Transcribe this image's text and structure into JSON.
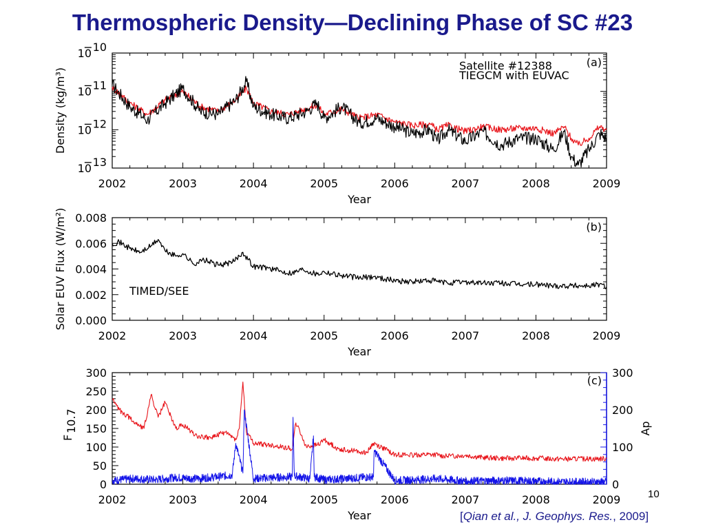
{
  "title": "Thermospheric Density—Declining Phase of SC #23",
  "page_number": "10",
  "citation": {
    "open": "[",
    "authors": "Qian et al., J. Geophys. Res.",
    "rest": ", 2009]"
  },
  "colors": {
    "title": "#1a1a8c",
    "observed": "#000000",
    "model": "#e8141a",
    "f107": "#e8141a",
    "ap": "#1414e8"
  },
  "chart_data": [
    {
      "type": "line",
      "panel": "(a)",
      "xlabel": "Year",
      "ylabel": "Density (kg/m³)",
      "yscale": "log",
      "xlim": [
        2002,
        2009
      ],
      "ylim": [
        1e-13,
        1e-10
      ],
      "xticks": [
        "2002",
        "2003",
        "2004",
        "2005",
        "2006",
        "2007",
        "2008",
        "2009"
      ],
      "yticks": [
        {
          "value": 1e-13,
          "base": "10",
          "exp": "−13"
        },
        {
          "value": 1e-12,
          "base": "10",
          "exp": "−12"
        },
        {
          "value": 1e-11,
          "base": "10",
          "exp": "−11"
        },
        {
          "value": 1e-10,
          "base": "10",
          "exp": "−10"
        }
      ],
      "legend": [
        "Satellite #12388",
        "TIEGCM with EUVAC"
      ],
      "legend_position": "top-right",
      "series": [
        {
          "name": "Satellite #12388",
          "x": [
            2002.0,
            2002.25,
            2002.5,
            2002.75,
            2003.0,
            2003.25,
            2003.5,
            2003.75,
            2003.9,
            2004.0,
            2004.25,
            2004.5,
            2004.75,
            2004.9,
            2005.0,
            2005.25,
            2005.5,
            2005.75,
            2006.0,
            2006.25,
            2006.5,
            2006.6,
            2006.75,
            2007.0,
            2007.25,
            2007.5,
            2007.75,
            2008.0,
            2008.25,
            2008.4,
            2008.5,
            2008.6,
            2008.75,
            2008.9,
            2009.0
          ],
          "y": [
            1.5e-11,
            4e-12,
            1.8e-12,
            5e-12,
            1.2e-11,
            3e-12,
            2.5e-12,
            6e-12,
            1.8e-11,
            4e-12,
            2.5e-12,
            2e-12,
            3e-12,
            5e-12,
            2e-12,
            4e-12,
            1.5e-12,
            2e-12,
            1.2e-12,
            8e-13,
            1e-12,
            5e-13,
            1e-12,
            5e-13,
            9e-13,
            4e-13,
            6e-13,
            6e-13,
            3e-13,
            9e-13,
            2e-13,
            1.2e-13,
            3e-13,
            8e-13,
            6e-13
          ]
        },
        {
          "name": "TIEGCM with EUVAC",
          "x": [
            2002.0,
            2002.25,
            2002.5,
            2002.75,
            2003.0,
            2003.25,
            2003.5,
            2003.75,
            2003.9,
            2004.0,
            2004.25,
            2004.5,
            2004.75,
            2004.9,
            2005.0,
            2005.25,
            2005.5,
            2005.75,
            2006.0,
            2006.25,
            2006.5,
            2006.6,
            2006.75,
            2007.0,
            2007.25,
            2007.5,
            2007.75,
            2008.0,
            2008.25,
            2008.4,
            2008.5,
            2008.6,
            2008.75,
            2008.9,
            2009.0
          ],
          "y": [
            1.3e-11,
            5e-12,
            2.5e-12,
            6e-12,
            1e-11,
            4e-12,
            3e-12,
            6e-12,
            1.2e-11,
            5e-12,
            3e-12,
            2.5e-12,
            3.5e-12,
            4.5e-12,
            2.5e-12,
            3.5e-12,
            2e-12,
            2.5e-12,
            1.6e-12,
            1.3e-12,
            1.4e-12,
            1e-12,
            1.3e-12,
            9e-13,
            1.2e-12,
            1e-12,
            1.1e-12,
            1.1e-12,
            8e-13,
            1.2e-12,
            6e-13,
            4e-13,
            6e-13,
            1.2e-12,
            1e-12
          ]
        }
      ]
    },
    {
      "type": "line",
      "panel": "(b)",
      "xlabel": "Year",
      "ylabel": "Solar EUV Flux (W/m²)",
      "xlim": [
        2002,
        2009
      ],
      "ylim": [
        0,
        0.008
      ],
      "xticks": [
        "2002",
        "2003",
        "2004",
        "2005",
        "2006",
        "2007",
        "2008",
        "2009"
      ],
      "yticks": [
        "0.000",
        "0.002",
        "0.004",
        "0.006",
        "0.008"
      ],
      "annotation": "TIMED/SEE",
      "series": [
        {
          "name": "TIMED/SEE",
          "x": [
            2002.0,
            2002.1,
            2002.25,
            2002.4,
            2002.55,
            2002.65,
            2002.75,
            2002.9,
            2003.0,
            2003.15,
            2003.3,
            2003.5,
            2003.7,
            2003.85,
            2004.0,
            2004.2,
            2004.4,
            2004.55,
            2004.7,
            2004.9,
            2005.0,
            2005.25,
            2005.5,
            2005.7,
            2006.0,
            2006.25,
            2006.5,
            2006.75,
            2007.0,
            2007.25,
            2007.5,
            2007.75,
            2008.0,
            2008.25,
            2008.5,
            2008.75,
            2008.9,
            2009.0
          ],
          "y": [
            0.006,
            0.0061,
            0.0056,
            0.0053,
            0.0058,
            0.0063,
            0.0054,
            0.005,
            0.0052,
            0.0044,
            0.0047,
            0.0043,
            0.0045,
            0.0053,
            0.0042,
            0.0041,
            0.0038,
            0.0037,
            0.004,
            0.0036,
            0.0038,
            0.0035,
            0.0033,
            0.0034,
            0.0031,
            0.003,
            0.0031,
            0.0029,
            0.003,
            0.0029,
            0.0029,
            0.0028,
            0.0028,
            0.0027,
            0.0027,
            0.0027,
            0.0028,
            0.0026
          ]
        }
      ]
    },
    {
      "type": "line",
      "panel": "(c)",
      "xlabel": "Year",
      "ylabel": "F10.7",
      "ylabel_main": "F",
      "ylabel_sub": "10.7",
      "y2label": "Ap",
      "xlim": [
        2002,
        2009
      ],
      "ylim": [
        0,
        300
      ],
      "y2lim": [
        0,
        300
      ],
      "xticks": [
        "2002",
        "2003",
        "2004",
        "2005",
        "2006",
        "2007",
        "2008",
        "2009"
      ],
      "yticks": [
        "0",
        "50",
        "100",
        "150",
        "200",
        "250",
        "300"
      ],
      "y2ticks": [
        "0",
        "100",
        "200",
        "300"
      ],
      "series": [
        {
          "name": "F10.7",
          "x": [
            2002.0,
            2002.1,
            2002.2,
            2002.3,
            2002.45,
            2002.55,
            2002.65,
            2002.75,
            2002.9,
            2003.0,
            2003.2,
            2003.4,
            2003.6,
            2003.75,
            2003.8,
            2003.85,
            2003.9,
            2004.0,
            2004.2,
            2004.4,
            2004.55,
            2004.6,
            2004.75,
            2004.9,
            2005.0,
            2005.2,
            2005.4,
            2005.6,
            2005.7,
            2006.0,
            2006.25,
            2006.5,
            2006.75,
            2007.0,
            2007.25,
            2007.5,
            2007.75,
            2008.0,
            2008.25,
            2008.5,
            2008.75,
            2009.0
          ],
          "y": [
            230,
            200,
            185,
            170,
            150,
            240,
            180,
            220,
            150,
            160,
            130,
            125,
            140,
            120,
            150,
            275,
            140,
            110,
            105,
            100,
            95,
            165,
            100,
            105,
            120,
            95,
            90,
            85,
            110,
            80,
            78,
            80,
            75,
            78,
            72,
            70,
            70,
            70,
            68,
            68,
            68,
            69
          ]
        },
        {
          "name": "Ap",
          "axis": "right",
          "x": [
            2002.0,
            2002.3,
            2002.6,
            2002.9,
            2003.2,
            2003.5,
            2003.7,
            2003.75,
            2003.85,
            2003.87,
            2004.0,
            2004.3,
            2004.55,
            2004.56,
            2004.58,
            2004.8,
            2004.85,
            2004.86,
            2005.0,
            2005.3,
            2005.7,
            2005.71,
            2006.0,
            2006.3,
            2006.6,
            2007.0,
            2007.5,
            2008.0,
            2008.5,
            2009.0
          ],
          "y": [
            10,
            15,
            12,
            18,
            15,
            20,
            25,
            110,
            30,
            200,
            15,
            18,
            20,
            180,
            22,
            15,
            130,
            20,
            12,
            15,
            20,
            90,
            10,
            12,
            15,
            8,
            10,
            8,
            6,
            6
          ]
        }
      ]
    }
  ]
}
